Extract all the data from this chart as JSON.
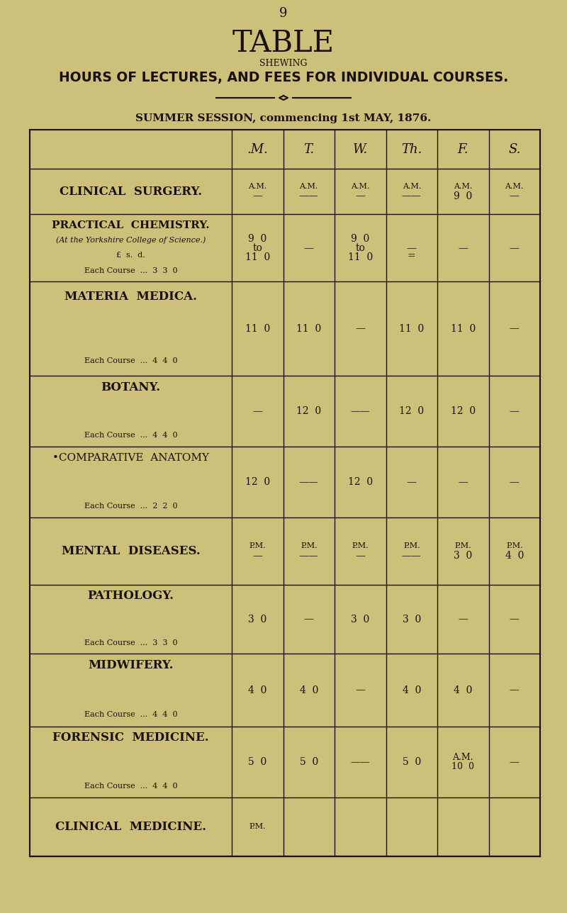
{
  "page_number": "9",
  "title": "TABLE",
  "subtitle": "SHEWING",
  "main_heading": "HOURS OF LECTURES, AND FEES FOR INDIVIDUAL COURSES.",
  "session_text": "SUMMER SESSION, commencing 1st MAY, 1876.",
  "bg_color": "#ccc07a",
  "text_color": "#1a1008",
  "col_headers": [
    ".M.",
    "T.",
    "W.",
    "Th.",
    "F.",
    "S."
  ],
  "row_heights_weights": [
    58,
    85,
    120,
    90,
    90,
    85,
    88,
    92,
    90,
    75
  ],
  "rows": [
    {
      "labels": [
        [
          "CLINICAL  SURGERY.",
          true,
          false,
          12
        ]
      ],
      "cells": [
        [
          "A.M.",
          8,
          "—",
          10
        ],
        [
          "A.M.",
          8,
          "——",
          10
        ],
        [
          "A.M.",
          8,
          "—",
          10
        ],
        [
          "A.M.",
          8,
          "——",
          10
        ],
        [
          "A.M.",
          8,
          "9  0",
          10
        ],
        [
          "A.M.",
          8,
          "—",
          10
        ]
      ]
    },
    {
      "labels": [
        [
          "PRACTICAL  CHEMISTRY.",
          true,
          false,
          11
        ],
        [
          "(At the Yorkshire College of Science.)",
          false,
          true,
          8
        ],
        [
          "£  s.  d.",
          false,
          false,
          8
        ],
        [
          "Each Course  ...  3  3  0",
          false,
          false,
          8
        ]
      ],
      "cells": [
        [
          "9  0\nto\n11  0",
          10,
          "",
          10
        ],
        [
          "—",
          10,
          "",
          10
        ],
        [
          "9  0\nto\n11  0",
          10,
          "",
          10
        ],
        [
          "—",
          10,
          "",
          10
        ],
        [
          "—",
          10,
          "",
          10
        ],
        [
          "—",
          10,
          "",
          10
        ]
      ],
      "th_extra": "="
    },
    {
      "labels": [
        [
          "MATERIA  MEDICA.",
          true,
          false,
          12
        ],
        [
          "Each Course  ...  4  4  0",
          false,
          false,
          8
        ]
      ],
      "cells": [
        [
          "11  0",
          10,
          "",
          10
        ],
        [
          "11  0",
          10,
          "",
          10
        ],
        [
          "—",
          10,
          "",
          10
        ],
        [
          "11  0",
          10,
          "",
          10
        ],
        [
          "11  0",
          10,
          "",
          10
        ],
        [
          "—",
          10,
          "",
          10
        ]
      ]
    },
    {
      "labels": [
        [
          "BOTANY.",
          true,
          false,
          12
        ],
        [
          "Each Course  ...  4  4  0",
          false,
          false,
          8
        ]
      ],
      "cells": [
        [
          "—",
          10,
          "",
          10
        ],
        [
          "12  0",
          10,
          "",
          10
        ],
        [
          "——",
          10,
          "",
          10
        ],
        [
          "12  0",
          10,
          "",
          10
        ],
        [
          "12  0",
          10,
          "",
          10
        ],
        [
          "—",
          10,
          "",
          10
        ]
      ]
    },
    {
      "labels": [
        [
          "•COMPARATIVE  ANATOMY",
          false,
          false,
          11
        ],
        [
          "Each Course  ...  2  2  0",
          false,
          false,
          8
        ]
      ],
      "cells": [
        [
          "12  0",
          10,
          "",
          10
        ],
        [
          "——",
          10,
          "",
          10
        ],
        [
          "12  0",
          10,
          "",
          10
        ],
        [
          "—",
          10,
          "",
          10
        ],
        [
          "—",
          10,
          "",
          10
        ],
        [
          "—",
          10,
          "",
          10
        ]
      ]
    },
    {
      "labels": [
        [
          "MENTAL  DISEASES.",
          true,
          false,
          12
        ]
      ],
      "cells": [
        [
          "P.M.",
          8,
          "—",
          10
        ],
        [
          "P.M.",
          8,
          "——",
          10
        ],
        [
          "P.M.",
          8,
          "—",
          10
        ],
        [
          "P.M.",
          8,
          "——",
          10
        ],
        [
          "P.M.",
          8,
          "3  0",
          10
        ],
        [
          "P.M.",
          8,
          "4  0",
          10
        ]
      ]
    },
    {
      "labels": [
        [
          "PATHOLOGY.",
          true,
          false,
          12
        ],
        [
          "Each Course  ...  3  3  0",
          false,
          false,
          8
        ]
      ],
      "cells": [
        [
          "3  0",
          10,
          "",
          10
        ],
        [
          "—",
          10,
          "",
          10
        ],
        [
          "3  0",
          10,
          "",
          10
        ],
        [
          "3  0",
          10,
          "",
          10
        ],
        [
          "—",
          10,
          "",
          10
        ],
        [
          "—",
          10,
          "",
          10
        ]
      ]
    },
    {
      "labels": [
        [
          "MIDWIFERY.",
          true,
          false,
          12
        ],
        [
          "Each Course  ...  4  4  0",
          false,
          false,
          8
        ]
      ],
      "cells": [
        [
          "4  0",
          10,
          "",
          10
        ],
        [
          "4  0",
          10,
          "",
          10
        ],
        [
          "—",
          10,
          "",
          10
        ],
        [
          "4  0",
          10,
          "",
          10
        ],
        [
          "4  0",
          10,
          "",
          10
        ],
        [
          "—",
          10,
          "",
          10
        ]
      ]
    },
    {
      "labels": [
        [
          "FORENSIC  MEDICINE.",
          true,
          false,
          12
        ],
        [
          "Each Course  ...  4  4  0",
          false,
          false,
          8
        ]
      ],
      "cells": [
        [
          "5  0",
          10,
          "",
          10
        ],
        [
          "5  0",
          10,
          "",
          10
        ],
        [
          "——",
          10,
          "",
          10
        ],
        [
          "5  0",
          10,
          "",
          10
        ],
        [
          "A.M.\n10  0",
          9,
          "",
          10
        ],
        [
          "—",
          10,
          "",
          10
        ]
      ]
    },
    {
      "labels": [
        [
          "CLINICAL  MEDICINE.",
          true,
          false,
          12
        ]
      ],
      "cells": [
        [
          "P.M.",
          8,
          "",
          10
        ],
        [
          "",
          10,
          "",
          10
        ],
        [
          "",
          10,
          "",
          10
        ],
        [
          "",
          10,
          "",
          10
        ],
        [
          "",
          10,
          "",
          10
        ],
        [
          "",
          10,
          "",
          10
        ]
      ]
    }
  ]
}
